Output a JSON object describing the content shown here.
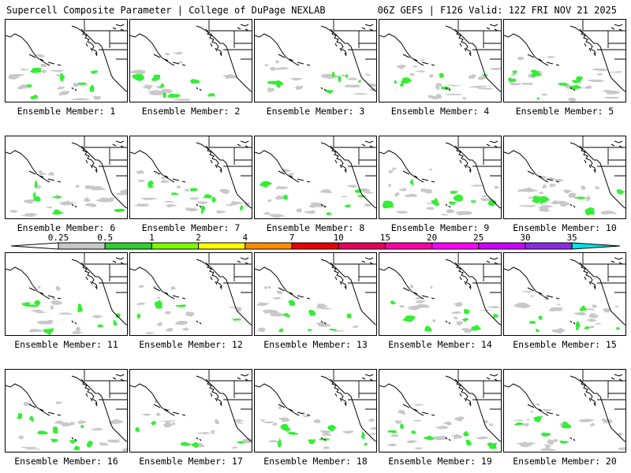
{
  "header": {
    "left_title": "Supercell Composite Parameter | College of DuPage NEXLAB",
    "right_title": "06Z GEFS | F126 Valid: 12Z FRI NOV 21 2025"
  },
  "member_label_prefix": "Ensemble Member: ",
  "members": [
    1,
    2,
    3,
    4,
    5,
    6,
    7,
    8,
    9,
    10,
    11,
    12,
    13,
    14,
    15,
    16,
    17,
    18,
    19,
    20
  ],
  "colorbar": {
    "ticks": [
      "0.25",
      "0.5",
      "1",
      "2",
      "4",
      "7",
      "10",
      "15",
      "20",
      "25",
      "30",
      "35"
    ],
    "colors": [
      "#c8c8c8",
      "#32cd32",
      "#7cfc00",
      "#ffff00",
      "#ff8c00",
      "#e60000",
      "#e6005c",
      "#ff00aa",
      "#ff00ff",
      "#cc00ff",
      "#8a2be2",
      "#9966cc",
      "#00e5e5"
    ]
  },
  "colors": {
    "gray_field": "#c8c8c8",
    "green_field": "#33ee33",
    "coastline": "#000000"
  }
}
